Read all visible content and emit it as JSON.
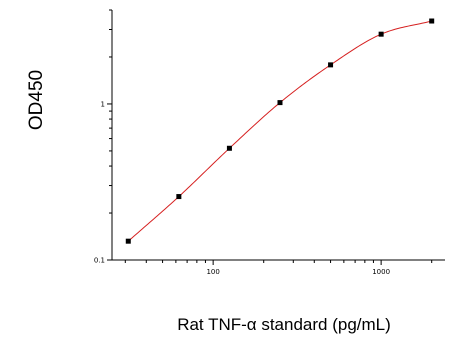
{
  "chart_data": {
    "type": "scatter",
    "title": "",
    "xlabel": "Rat TNF-α standard (pg/mL)",
    "ylabel": "OD450",
    "x_scale": "log",
    "y_scale": "log",
    "xlim": [
      25,
      2400
    ],
    "ylim": [
      0.1,
      4.0
    ],
    "x_ticks": [
      100,
      1000
    ],
    "x_tick_labels": [
      "100",
      "1000"
    ],
    "y_ticks": [
      0.1,
      1
    ],
    "y_tick_labels": [
      "0.1",
      "1"
    ],
    "grid": false,
    "legend": "none",
    "series": [
      {
        "x": [
          31.25,
          62.5,
          125,
          250,
          500,
          1000,
          2000
        ],
        "y": [
          0.132,
          0.255,
          0.52,
          1.02,
          1.78,
          2.8,
          3.4
        ]
      }
    ],
    "curve_color": "#d62020",
    "marker_color": "#000000"
  }
}
